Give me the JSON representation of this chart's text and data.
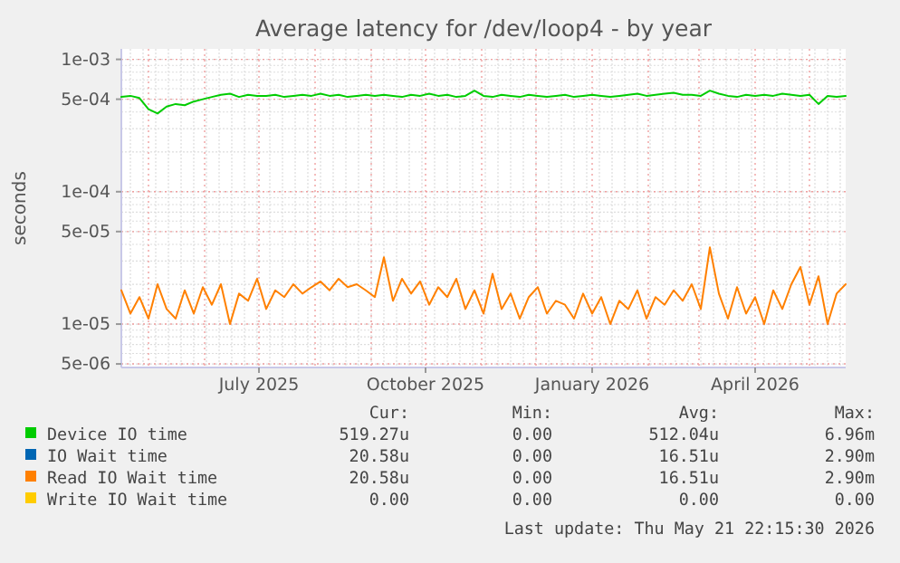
{
  "chart_data": {
    "type": "line",
    "title": "Average latency for /dev/loop4 - by year",
    "ylabel": "seconds",
    "log": "y",
    "grid": true,
    "legend": "bottom",
    "marker": "none",
    "line_style": "solid",
    "x": [
      "2025-04-16",
      "2025-04-21",
      "2025-04-26",
      "2025-05-01",
      "2025-05-06",
      "2025-05-11",
      "2025-05-16",
      "2025-05-21",
      "2025-05-26",
      "2025-05-31",
      "2025-06-05",
      "2025-06-10",
      "2025-06-15",
      "2025-06-20",
      "2025-06-25",
      "2025-06-30",
      "2025-07-05",
      "2025-07-10",
      "2025-07-15",
      "2025-07-20",
      "2025-07-25",
      "2025-07-30",
      "2025-08-04",
      "2025-08-09",
      "2025-08-14",
      "2025-08-19",
      "2025-08-24",
      "2025-08-29",
      "2025-09-03",
      "2025-09-08",
      "2025-09-13",
      "2025-09-18",
      "2025-09-23",
      "2025-09-28",
      "2025-10-03",
      "2025-10-08",
      "2025-10-13",
      "2025-10-18",
      "2025-10-23",
      "2025-10-28",
      "2025-11-02",
      "2025-11-07",
      "2025-11-12",
      "2025-11-17",
      "2025-11-22",
      "2025-11-27",
      "2025-12-02",
      "2025-12-07",
      "2025-12-12",
      "2025-12-17",
      "2025-12-22",
      "2025-12-27",
      "2026-01-01",
      "2026-01-06",
      "2026-01-11",
      "2026-01-16",
      "2026-01-21",
      "2026-01-26",
      "2026-01-31",
      "2026-02-05",
      "2026-02-10",
      "2026-02-15",
      "2026-02-20",
      "2026-02-25",
      "2026-03-02",
      "2026-03-07",
      "2026-03-12",
      "2026-03-17",
      "2026-03-22",
      "2026-03-27",
      "2026-04-01",
      "2026-04-06",
      "2026-04-11",
      "2026-04-16",
      "2026-04-21",
      "2026-04-26",
      "2026-05-01",
      "2026-05-06",
      "2026-05-11",
      "2026-05-16",
      "2026-05-21"
    ],
    "xlim": [
      "2025-04-16",
      "2026-05-21"
    ],
    "xticks": [
      {
        "value": "2025-07-01",
        "label": "July 2025"
      },
      {
        "value": "2025-10-01",
        "label": "October 2025"
      },
      {
        "value": "2026-01-01",
        "label": "January 2026"
      },
      {
        "value": "2026-04-01",
        "label": "April 2026"
      }
    ],
    "ylim": [
      4.7e-06,
      0.0012
    ],
    "yticks": [
      {
        "value": 0.001,
        "label": "1e-03"
      },
      {
        "value": 0.0005,
        "label": "5e-04"
      },
      {
        "value": 0.0001,
        "label": "1e-04"
      },
      {
        "value": 5e-05,
        "label": "5e-05"
      },
      {
        "value": 1e-05,
        "label": "1e-05"
      },
      {
        "value": 5e-06,
        "label": "5e-06"
      }
    ],
    "series": [
      {
        "name": "Device IO time",
        "color": "#00cc00",
        "values": [
          0.00052,
          0.00053,
          0.00051,
          0.00042,
          0.00039,
          0.00044,
          0.00046,
          0.00045,
          0.00048,
          0.0005,
          0.00052,
          0.00054,
          0.00055,
          0.00052,
          0.00054,
          0.00053,
          0.00053,
          0.00054,
          0.00052,
          0.00053,
          0.00054,
          0.00053,
          0.00055,
          0.00053,
          0.00054,
          0.00052,
          0.00053,
          0.00054,
          0.00053,
          0.00054,
          0.00053,
          0.00052,
          0.00054,
          0.00053,
          0.00055,
          0.00053,
          0.00054,
          0.00052,
          0.00053,
          0.00058,
          0.00053,
          0.00052,
          0.00054,
          0.00053,
          0.00052,
          0.00054,
          0.00053,
          0.00052,
          0.00053,
          0.00054,
          0.00052,
          0.00053,
          0.00054,
          0.00053,
          0.00052,
          0.00053,
          0.00054,
          0.00055,
          0.00053,
          0.00054,
          0.00055,
          0.00056,
          0.00054,
          0.00054,
          0.00053,
          0.00058,
          0.00055,
          0.00053,
          0.00052,
          0.00054,
          0.00053,
          0.00054,
          0.00053,
          0.00055,
          0.00054,
          0.00053,
          0.00054,
          0.00046,
          0.00053,
          0.00052,
          0.00053
        ]
      },
      {
        "name": "IO Wait time",
        "color": "#0066b3",
        "values": [
          null,
          null,
          null,
          null,
          null,
          null,
          null,
          null,
          null,
          null,
          null,
          null,
          null,
          null,
          null,
          null,
          null,
          null,
          null,
          null,
          null,
          null,
          null,
          null,
          null,
          null,
          null,
          null,
          null,
          null,
          null,
          null,
          null,
          null,
          null,
          null,
          null,
          null,
          null,
          null,
          null,
          null,
          null,
          null,
          null,
          null,
          null,
          null,
          null,
          null,
          null,
          null,
          null,
          null,
          null,
          null,
          null,
          null,
          null,
          null,
          null,
          null,
          null,
          null,
          null,
          null,
          null,
          null,
          null,
          null,
          null,
          null,
          null,
          null,
          null,
          null,
          null,
          null,
          null,
          null,
          null
        ]
      },
      {
        "name": "Read IO Wait time",
        "color": "#ff8000",
        "values": [
          1.8e-05,
          1.2e-05,
          1.6e-05,
          1.1e-05,
          2e-05,
          1.3e-05,
          1.1e-05,
          1.8e-05,
          1.2e-05,
          1.9e-05,
          1.4e-05,
          2e-05,
          1e-05,
          1.7e-05,
          1.5e-05,
          2.2e-05,
          1.3e-05,
          1.8e-05,
          1.6e-05,
          2e-05,
          1.7e-05,
          1.9e-05,
          2.1e-05,
          1.8e-05,
          2.2e-05,
          1.9e-05,
          2e-05,
          1.8e-05,
          1.6e-05,
          3.2e-05,
          1.5e-05,
          2.2e-05,
          1.7e-05,
          2.1e-05,
          1.4e-05,
          1.9e-05,
          1.6e-05,
          2.2e-05,
          1.3e-05,
          1.8e-05,
          1.2e-05,
          2.4e-05,
          1.3e-05,
          1.7e-05,
          1.1e-05,
          1.6e-05,
          1.9e-05,
          1.2e-05,
          1.5e-05,
          1.4e-05,
          1.1e-05,
          1.7e-05,
          1.2e-05,
          1.6e-05,
          1e-05,
          1.5e-05,
          1.3e-05,
          1.8e-05,
          1.1e-05,
          1.6e-05,
          1.4e-05,
          1.8e-05,
          1.5e-05,
          2e-05,
          1.3e-05,
          3.8e-05,
          1.7e-05,
          1.1e-05,
          1.9e-05,
          1.2e-05,
          1.6e-05,
          1e-05,
          1.8e-05,
          1.3e-05,
          2e-05,
          2.7e-05,
          1.4e-05,
          2.3e-05,
          1e-05,
          1.7e-05,
          2e-05
        ]
      },
      {
        "name": "Write IO Wait time",
        "color": "#ffcc00",
        "values": [
          null,
          null,
          null,
          null,
          null,
          null,
          null,
          null,
          null,
          null,
          null,
          null,
          null,
          null,
          null,
          null,
          null,
          null,
          null,
          null,
          null,
          null,
          null,
          null,
          null,
          null,
          null,
          null,
          null,
          null,
          null,
          null,
          null,
          null,
          null,
          null,
          null,
          null,
          null,
          null,
          null,
          null,
          null,
          null,
          null,
          null,
          null,
          null,
          null,
          null,
          null,
          null,
          null,
          null,
          null,
          null,
          null,
          null,
          null,
          null,
          null,
          null,
          null,
          null,
          null,
          null,
          null,
          null,
          null,
          null,
          null,
          null,
          null,
          null,
          null,
          null,
          null,
          null,
          null,
          null,
          null
        ]
      }
    ],
    "annotations": [
      "Cur:",
      "Min:",
      "Avg:",
      "Max:",
      "519.27u",
      "0.00",
      "512.04u",
      "6.96m",
      "20.58u",
      "0.00",
      "16.51u",
      "2.90m",
      "20.58u",
      "0.00",
      "16.51u",
      "2.90m",
      "0.00",
      "0.00",
      "0.00",
      "0.00",
      "Last update: Thu May 21 22:15:30 2026"
    ]
  }
}
